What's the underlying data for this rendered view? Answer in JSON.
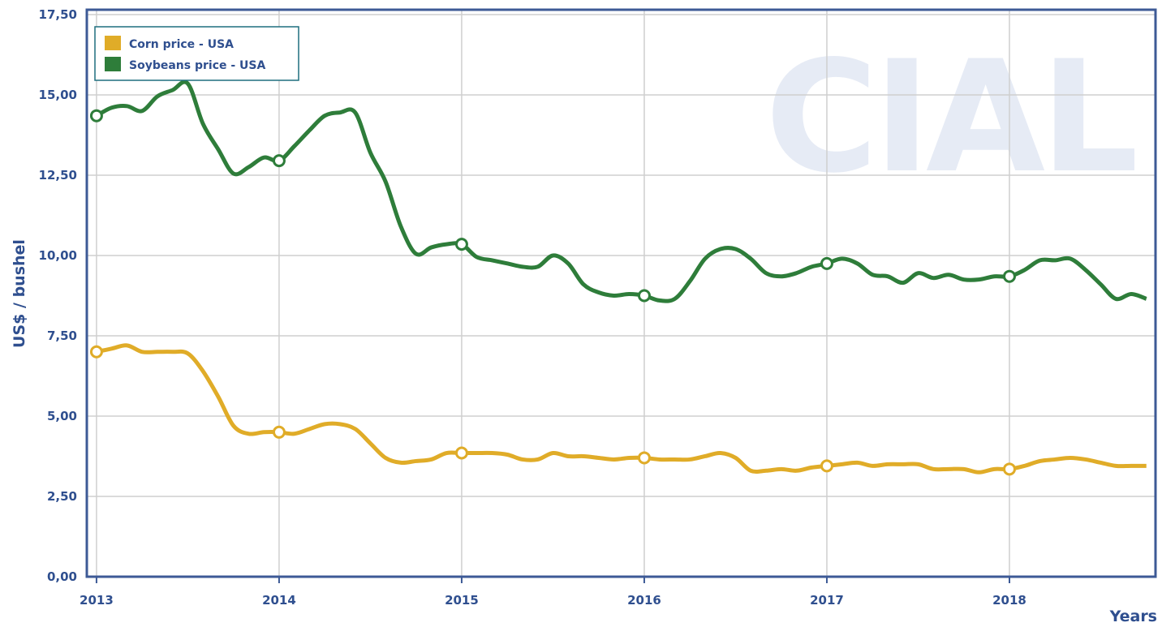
{
  "chart_data": {
    "type": "line",
    "watermark": "CIAL",
    "y_label": "US$ / bushel",
    "x_label": "Years",
    "x": [
      2013,
      2013.083,
      2013.167,
      2013.25,
      2013.333,
      2013.417,
      2013.5,
      2013.583,
      2013.667,
      2013.75,
      2013.833,
      2013.917,
      2014,
      2014.083,
      2014.167,
      2014.25,
      2014.333,
      2014.417,
      2014.5,
      2014.583,
      2014.667,
      2014.75,
      2014.833,
      2014.917,
      2015,
      2015.083,
      2015.167,
      2015.25,
      2015.333,
      2015.417,
      2015.5,
      2015.583,
      2015.667,
      2015.75,
      2015.833,
      2015.917,
      2016,
      2016.083,
      2016.167,
      2016.25,
      2016.333,
      2016.417,
      2016.5,
      2016.583,
      2016.667,
      2016.75,
      2016.833,
      2016.917,
      2017,
      2017.083,
      2017.167,
      2017.25,
      2017.333,
      2017.417,
      2017.5,
      2017.583,
      2017.667,
      2017.75,
      2017.833,
      2017.917,
      2018,
      2018.083,
      2018.167,
      2018.25,
      2018.333,
      2018.417,
      2018.5,
      2018.583,
      2018.667,
      2018.75
    ],
    "series": [
      {
        "name": "Corn price - USA",
        "color": "#e0ac28",
        "values": [
          7.0,
          7.1,
          7.2,
          7.0,
          7.0,
          7.0,
          6.95,
          6.4,
          5.6,
          4.7,
          4.45,
          4.5,
          4.5,
          4.45,
          4.6,
          4.75,
          4.75,
          4.6,
          4.15,
          3.7,
          3.55,
          3.6,
          3.65,
          3.85,
          3.85,
          3.85,
          3.85,
          3.8,
          3.65,
          3.65,
          3.85,
          3.75,
          3.75,
          3.7,
          3.65,
          3.7,
          3.7,
          3.65,
          3.65,
          3.65,
          3.75,
          3.85,
          3.7,
          3.3,
          3.3,
          3.35,
          3.3,
          3.4,
          3.45,
          3.5,
          3.55,
          3.45,
          3.5,
          3.5,
          3.5,
          3.35,
          3.35,
          3.35,
          3.25,
          3.35,
          3.35,
          3.45,
          3.6,
          3.65,
          3.7,
          3.65,
          3.55,
          3.45,
          3.45,
          3.45
        ]
      },
      {
        "name": "Soybeans price - USA",
        "color": "#2e7d3a",
        "values": [
          14.35,
          14.6,
          14.65,
          14.5,
          14.95,
          15.15,
          15.35,
          14.1,
          13.3,
          12.55,
          12.75,
          13.05,
          12.95,
          13.4,
          13.9,
          14.35,
          14.45,
          14.45,
          13.2,
          12.3,
          10.9,
          10.05,
          10.25,
          10.35,
          10.35,
          9.95,
          9.85,
          9.75,
          9.65,
          9.65,
          10.0,
          9.75,
          9.1,
          8.85,
          8.75,
          8.8,
          8.75,
          8.6,
          8.65,
          9.2,
          9.9,
          10.2,
          10.2,
          9.9,
          9.45,
          9.35,
          9.45,
          9.65,
          9.75,
          9.9,
          9.75,
          9.4,
          9.35,
          9.15,
          9.45,
          9.3,
          9.4,
          9.25,
          9.25,
          9.35,
          9.35,
          9.55,
          9.85,
          9.85,
          9.9,
          9.55,
          9.1,
          8.65,
          8.8,
          8.65
        ]
      }
    ],
    "xlim": [
      2012.947,
      2018.8
    ],
    "xticks": [
      2013,
      2014,
      2015,
      2016,
      2017,
      2018
    ],
    "ylim": [
      0,
      17.65
    ],
    "yticks": [
      {
        "value": 0,
        "label": "0,00"
      },
      {
        "value": 2.5,
        "label": "2,50"
      },
      {
        "value": 5,
        "label": "5,00"
      },
      {
        "value": 7.5,
        "label": "7,50"
      },
      {
        "value": 10,
        "label": "10,00"
      },
      {
        "value": 12.5,
        "label": "12,50"
      },
      {
        "value": 15,
        "label": "15,00"
      },
      {
        "value": 17.5,
        "label": "17,50"
      }
    ],
    "grid": true,
    "legend": "upper left"
  }
}
